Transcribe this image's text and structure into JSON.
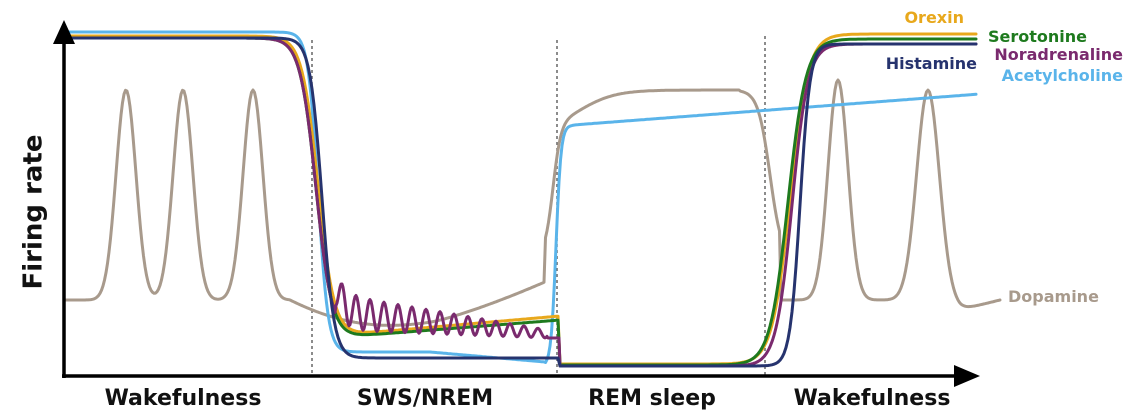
{
  "axis": {
    "ylabel": "Firing rate",
    "stages": [
      "Wakefulness",
      "SWS/NREM",
      "REM sleep",
      "Wakefulness"
    ]
  },
  "series": [
    {
      "key": "orexin",
      "name": "Orexin",
      "color": "#e8a81c"
    },
    {
      "key": "serotonine",
      "name": "Serotonine",
      "color": "#1e7a1e"
    },
    {
      "key": "noradrenaline",
      "name": "Noradrenaline",
      "color": "#7a2a6e"
    },
    {
      "key": "histamine",
      "name": "Histamine",
      "color": "#26336e"
    },
    {
      "key": "acetylcholine",
      "name": "Acetylcholine",
      "color": "#5ab4ea"
    },
    {
      "key": "dopamine",
      "name": "Dopamine",
      "color": "#a89a8c"
    }
  ]
}
